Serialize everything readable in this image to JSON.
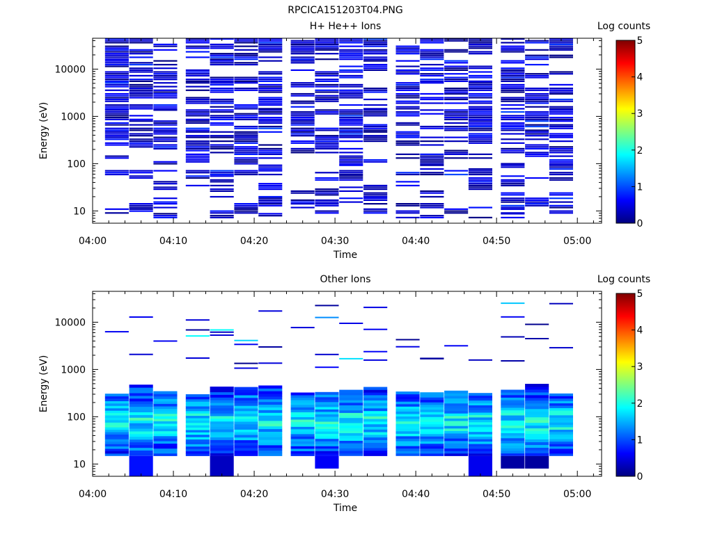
{
  "file_title": "RPCICA151203T04.PNG",
  "colorbar": {
    "label": "Log counts",
    "ticks": [
      "0",
      "1",
      "2",
      "3",
      "4",
      "5"
    ],
    "min": 0,
    "max": 5,
    "colormap": "jet"
  },
  "chart_data": [
    {
      "type": "heatmap",
      "title": "H+ He++ Ions",
      "xlabel": "Time",
      "ylabel": "Energy (eV)",
      "x_ticks": [
        "04:00",
        "04:10",
        "04:20",
        "04:30",
        "04:40",
        "04:50",
        "05:00"
      ],
      "x_range": [
        "04:00",
        "05:03"
      ],
      "y_ticks": [
        "10",
        "100",
        "1000",
        "10000"
      ],
      "y_scale": "log",
      "y_range": [
        5.5,
        45000
      ],
      "time_columns": [
        "04:03",
        "04:06",
        "04:09",
        "04:13",
        "04:16",
        "04:19",
        "04:22",
        "04:26",
        "04:29",
        "04:32",
        "04:35",
        "04:39",
        "04:42",
        "04:45",
        "04:48",
        "04:52",
        "04:55",
        "04:58"
      ],
      "energy_levels_eV": [
        8,
        10,
        13,
        17,
        22,
        29,
        38,
        50,
        65,
        85,
        110,
        145,
        190,
        250,
        330,
        430,
        560,
        730,
        950,
        1250,
        1600,
        2100,
        2750,
        3600,
        4700,
        6100,
        8000,
        10500,
        13700,
        17900,
        23400,
        30600,
        40000
      ],
      "value_range_log_counts": [
        0,
        1
      ],
      "note": "sparse low-count signal (log counts ~0-1) across all energies above ~10 eV"
    },
    {
      "type": "heatmap",
      "title": "Other Ions",
      "xlabel": "Time",
      "ylabel": "Energy (eV)",
      "x_ticks": [
        "04:00",
        "04:10",
        "04:20",
        "04:30",
        "04:40",
        "04:50",
        "05:00"
      ],
      "x_range": [
        "04:00",
        "05:03"
      ],
      "y_ticks": [
        "10",
        "100",
        "1000",
        "10000"
      ],
      "y_scale": "log",
      "y_range": [
        5.5,
        45000
      ],
      "time_columns": [
        "04:03",
        "04:06",
        "04:09",
        "04:13",
        "04:16",
        "04:19",
        "04:22",
        "04:26",
        "04:29",
        "04:32",
        "04:35",
        "04:39",
        "04:42",
        "04:45",
        "04:48",
        "04:52",
        "04:55",
        "04:58"
      ],
      "dense_band_eV": [
        15,
        500
      ],
      "value_range_log_counts": [
        0,
        2.5
      ],
      "peak_log_counts": 2.5,
      "note": "dense band 15-500 eV with log counts 0.5-2.5; sparse high-energy hits near 1000-25000 eV"
    }
  ]
}
